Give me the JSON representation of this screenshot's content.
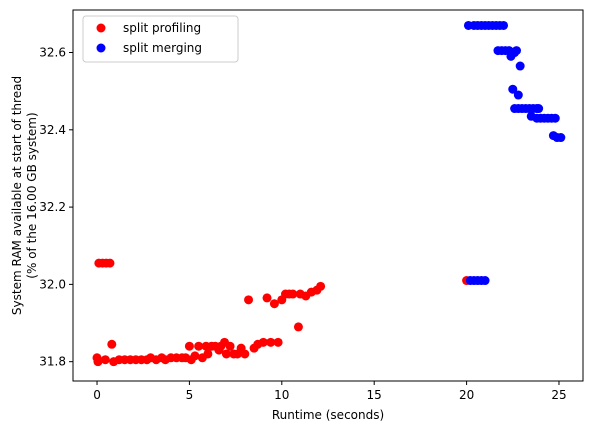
{
  "chart_data": {
    "type": "scatter",
    "xlabel": "Runtime (seconds)",
    "ylabel_lines": [
      "System RAM available at start of thread",
      "(% of the 16.00 GB system)"
    ],
    "xlim": [
      -1.3,
      26.3
    ],
    "ylim": [
      31.75,
      32.71
    ],
    "xticks": [
      0,
      5,
      10,
      15,
      20,
      25
    ],
    "yticks": [
      31.8,
      32.0,
      32.2,
      32.4,
      32.6
    ],
    "ytick_labels": [
      "31.8",
      "32.0",
      "32.2",
      "32.4",
      "32.6"
    ],
    "grid": false,
    "legend_position": "upper-left",
    "series": [
      {
        "name": "split profiling",
        "color": "#ff0000",
        "points": [
          [
            0.0,
            31.81
          ],
          [
            0.05,
            31.8
          ],
          [
            0.1,
            32.055
          ],
          [
            0.3,
            32.055
          ],
          [
            0.5,
            32.055
          ],
          [
            0.7,
            32.055
          ],
          [
            0.45,
            31.805
          ],
          [
            0.8,
            31.845
          ],
          [
            0.9,
            31.8
          ],
          [
            1.2,
            31.805
          ],
          [
            1.5,
            31.805
          ],
          [
            1.8,
            31.805
          ],
          [
            2.1,
            31.805
          ],
          [
            2.4,
            31.805
          ],
          [
            2.7,
            31.805
          ],
          [
            2.9,
            31.81
          ],
          [
            3.2,
            31.805
          ],
          [
            3.5,
            31.81
          ],
          [
            3.7,
            31.805
          ],
          [
            4.0,
            31.81
          ],
          [
            4.3,
            31.81
          ],
          [
            4.6,
            31.81
          ],
          [
            4.8,
            31.81
          ],
          [
            5.0,
            31.84
          ],
          [
            5.1,
            31.805
          ],
          [
            5.3,
            31.815
          ],
          [
            5.5,
            31.84
          ],
          [
            5.7,
            31.81
          ],
          [
            5.9,
            31.84
          ],
          [
            6.0,
            31.82
          ],
          [
            6.2,
            31.84
          ],
          [
            6.4,
            31.84
          ],
          [
            6.6,
            31.83
          ],
          [
            6.7,
            31.84
          ],
          [
            6.9,
            31.85
          ],
          [
            7.0,
            31.82
          ],
          [
            7.2,
            31.84
          ],
          [
            7.4,
            31.82
          ],
          [
            7.6,
            31.82
          ],
          [
            7.8,
            31.835
          ],
          [
            8.0,
            31.82
          ],
          [
            8.2,
            31.96
          ],
          [
            8.5,
            31.835
          ],
          [
            8.7,
            31.845
          ],
          [
            9.0,
            31.85
          ],
          [
            9.2,
            31.965
          ],
          [
            9.4,
            31.85
          ],
          [
            9.6,
            31.95
          ],
          [
            9.8,
            31.85
          ],
          [
            10.0,
            31.96
          ],
          [
            10.2,
            31.975
          ],
          [
            10.4,
            31.975
          ],
          [
            10.6,
            31.975
          ],
          [
            10.9,
            31.89
          ],
          [
            11.0,
            31.975
          ],
          [
            11.3,
            31.97
          ],
          [
            11.6,
            31.98
          ],
          [
            11.9,
            31.985
          ],
          [
            12.1,
            31.995
          ],
          [
            20.0,
            32.01
          ]
        ]
      },
      {
        "name": "split merging",
        "color": "#0000ff",
        "points": [
          [
            20.2,
            32.01
          ],
          [
            20.4,
            32.01
          ],
          [
            20.6,
            32.01
          ],
          [
            20.8,
            32.01
          ],
          [
            21.0,
            32.01
          ],
          [
            20.1,
            32.67
          ],
          [
            20.4,
            32.67
          ],
          [
            20.6,
            32.67
          ],
          [
            20.8,
            32.67
          ],
          [
            21.0,
            32.67
          ],
          [
            21.2,
            32.67
          ],
          [
            21.4,
            32.67
          ],
          [
            21.6,
            32.67
          ],
          [
            21.8,
            32.67
          ],
          [
            22.0,
            32.67
          ],
          [
            21.7,
            32.605
          ],
          [
            21.9,
            32.605
          ],
          [
            22.1,
            32.605
          ],
          [
            22.3,
            32.605
          ],
          [
            22.5,
            32.6
          ],
          [
            22.6,
            32.6
          ],
          [
            22.4,
            32.59
          ],
          [
            22.7,
            32.605
          ],
          [
            22.9,
            32.565
          ],
          [
            22.5,
            32.505
          ],
          [
            22.8,
            32.49
          ],
          [
            22.6,
            32.455
          ],
          [
            22.8,
            32.455
          ],
          [
            23.0,
            32.455
          ],
          [
            23.2,
            32.455
          ],
          [
            23.4,
            32.455
          ],
          [
            23.6,
            32.455
          ],
          [
            23.8,
            32.455
          ],
          [
            23.9,
            32.455
          ],
          [
            23.5,
            32.435
          ],
          [
            23.8,
            32.43
          ],
          [
            24.0,
            32.43
          ],
          [
            24.2,
            32.43
          ],
          [
            24.4,
            32.43
          ],
          [
            24.6,
            32.43
          ],
          [
            24.8,
            32.43
          ],
          [
            24.7,
            32.385
          ],
          [
            24.9,
            32.38
          ],
          [
            25.1,
            32.38
          ]
        ]
      }
    ]
  }
}
